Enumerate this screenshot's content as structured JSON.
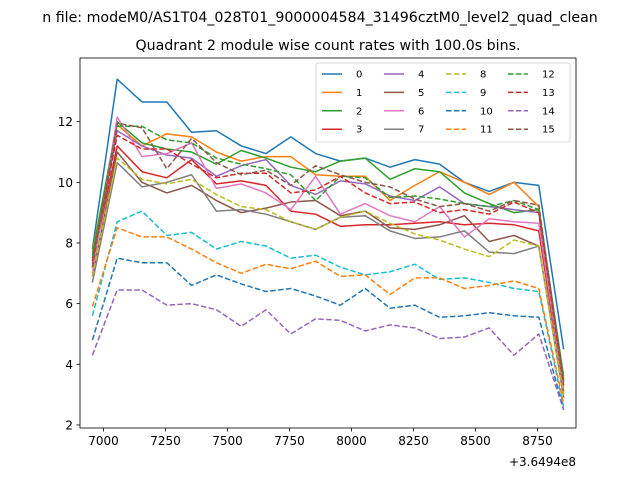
{
  "chart_data": {
    "type": "line",
    "suptitle": "n file: modeM0/AS1T04_028T01_9000004584_31496cztM0_level2_quad_clean",
    "title": "Quadrant 2 module wise count rates with 100.0s bins.",
    "xlabel": "",
    "ylabel": "",
    "x_offset_label": "+3.6494e8",
    "xlim": [
      6905,
      8905
    ],
    "ylim": [
      1.9,
      14.1
    ],
    "xticks": [
      7000,
      7250,
      7500,
      7750,
      8000,
      8250,
      8500,
      8750
    ],
    "yticks": [
      2,
      4,
      6,
      8,
      10,
      12
    ],
    "grid": false,
    "legend": {
      "position": "top-right",
      "columns": 4
    },
    "x": [
      6955,
      7055,
      7155,
      7255,
      7355,
      7455,
      7555,
      7655,
      7755,
      7855,
      7955,
      8055,
      8155,
      8255,
      8355,
      8455,
      8555,
      8655,
      8755,
      8855
    ],
    "series": [
      {
        "name": "0",
        "color": "#1f77b4",
        "dash": "solid",
        "values": [
          7.8,
          13.4,
          12.65,
          12.65,
          11.65,
          11.7,
          11.2,
          10.95,
          11.5,
          10.95,
          10.7,
          10.8,
          10.5,
          10.75,
          10.6,
          10.0,
          9.7,
          10.0,
          9.9,
          4.5
        ]
      },
      {
        "name": "1",
        "color": "#ff7f0e",
        "dash": "solid",
        "values": [
          7.7,
          11.9,
          11.2,
          11.6,
          11.5,
          11.0,
          10.7,
          10.85,
          10.85,
          10.25,
          10.2,
          10.2,
          9.4,
          9.9,
          10.35,
          10.0,
          9.6,
          10.0,
          9.2,
          3.5
        ]
      },
      {
        "name": "2",
        "color": "#2ca02c",
        "dash": "solid",
        "values": [
          7.6,
          12.0,
          11.3,
          11.1,
          11.0,
          10.6,
          11.05,
          10.8,
          10.5,
          10.35,
          10.7,
          10.8,
          10.1,
          10.45,
          10.35,
          9.65,
          9.3,
          9.0,
          9.1,
          3.6
        ]
      },
      {
        "name": "3",
        "color": "#d62728",
        "dash": "solid",
        "values": [
          7.3,
          11.2,
          10.35,
          10.15,
          10.75,
          9.95,
          10.05,
          9.9,
          9.05,
          8.95,
          8.55,
          8.6,
          8.6,
          8.65,
          8.7,
          8.6,
          8.65,
          8.6,
          8.4,
          3.1
        ]
      },
      {
        "name": "4",
        "color": "#9467bd",
        "dash": "solid",
        "values": [
          7.2,
          11.7,
          11.2,
          10.9,
          10.8,
          10.2,
          10.55,
          10.75,
          9.9,
          9.6,
          10.05,
          9.95,
          9.55,
          9.4,
          9.85,
          9.3,
          9.2,
          9.1,
          9.0,
          3.4
        ]
      },
      {
        "name": "5",
        "color": "#8c564b",
        "dash": "solid",
        "values": [
          6.9,
          11.0,
          10.0,
          9.65,
          9.9,
          9.4,
          9.0,
          9.15,
          9.35,
          9.4,
          8.9,
          9.05,
          8.5,
          8.45,
          8.6,
          8.9,
          8.05,
          8.25,
          7.9,
          3.0
        ]
      },
      {
        "name": "6",
        "color": "#e377c2",
        "dash": "solid",
        "values": [
          7.0,
          12.15,
          10.85,
          10.95,
          11.3,
          9.8,
          9.95,
          9.65,
          9.1,
          10.2,
          8.95,
          9.3,
          8.9,
          8.7,
          9.2,
          8.2,
          8.8,
          8.7,
          8.65,
          3.2
        ]
      },
      {
        "name": "7",
        "color": "#7f7f7f",
        "dash": "solid",
        "values": [
          6.7,
          10.65,
          9.85,
          10.0,
          10.25,
          9.05,
          9.1,
          8.95,
          8.7,
          8.45,
          8.85,
          8.9,
          8.4,
          8.15,
          8.2,
          8.4,
          7.7,
          7.65,
          7.9,
          2.9
        ]
      },
      {
        "name": "8",
        "color": "#bcbd22",
        "dash": "dashed",
        "values": [
          6.9,
          10.8,
          10.1,
          9.95,
          10.1,
          9.6,
          9.2,
          9.1,
          8.7,
          8.45,
          8.85,
          9.05,
          8.65,
          8.3,
          8.1,
          7.8,
          7.55,
          8.1,
          7.9,
          3.0
        ]
      },
      {
        "name": "9",
        "color": "#17becf",
        "dash": "dashed",
        "values": [
          5.6,
          8.7,
          9.05,
          8.25,
          8.35,
          7.8,
          8.05,
          7.9,
          7.5,
          7.6,
          7.2,
          6.95,
          7.05,
          7.3,
          6.8,
          6.85,
          6.7,
          6.5,
          6.4,
          2.6
        ]
      },
      {
        "name": "10",
        "color": "#1f77b4",
        "dash": "dashed",
        "values": [
          4.8,
          7.5,
          7.35,
          7.35,
          6.6,
          6.95,
          6.65,
          6.4,
          6.5,
          6.25,
          5.95,
          6.5,
          5.85,
          5.95,
          5.55,
          5.6,
          5.7,
          5.6,
          5.55,
          2.5
        ]
      },
      {
        "name": "11",
        "color": "#ff7f0e",
        "dash": "dashed",
        "values": [
          5.9,
          8.5,
          8.2,
          8.2,
          7.8,
          7.35,
          7.0,
          7.3,
          7.15,
          7.4,
          6.9,
          6.95,
          6.3,
          6.85,
          6.85,
          6.5,
          6.6,
          6.75,
          6.5,
          2.7
        ]
      },
      {
        "name": "12",
        "color": "#2ca02c",
        "dash": "dashed",
        "values": [
          7.5,
          11.85,
          11.85,
          11.4,
          11.3,
          10.8,
          10.6,
          10.45,
          10.25,
          9.4,
          10.2,
          10.15,
          9.5,
          9.55,
          9.45,
          9.3,
          9.2,
          9.4,
          9.1,
          3.5
        ]
      },
      {
        "name": "13",
        "color": "#d62728",
        "dash": "dashed",
        "values": [
          7.4,
          11.55,
          11.1,
          11.1,
          10.6,
          10.15,
          10.3,
          10.3,
          9.65,
          9.75,
          10.2,
          9.65,
          9.3,
          9.35,
          9.0,
          9.1,
          8.95,
          9.35,
          9.0,
          3.3
        ]
      },
      {
        "name": "14",
        "color": "#9467bd",
        "dash": "dashed",
        "values": [
          4.3,
          6.45,
          6.45,
          5.95,
          6.0,
          5.8,
          5.25,
          5.8,
          5.0,
          5.5,
          5.45,
          5.1,
          5.3,
          5.2,
          4.85,
          4.9,
          5.2,
          4.3,
          5.0,
          2.5
        ]
      },
      {
        "name": "15",
        "color": "#8c564b",
        "dash": "dashed",
        "values": [
          7.2,
          11.95,
          11.8,
          10.45,
          11.45,
          10.65,
          10.25,
          10.4,
          9.9,
          10.55,
          10.25,
          10.0,
          9.85,
          9.45,
          9.2,
          9.3,
          9.05,
          9.4,
          9.25,
          3.4
        ]
      }
    ]
  }
}
